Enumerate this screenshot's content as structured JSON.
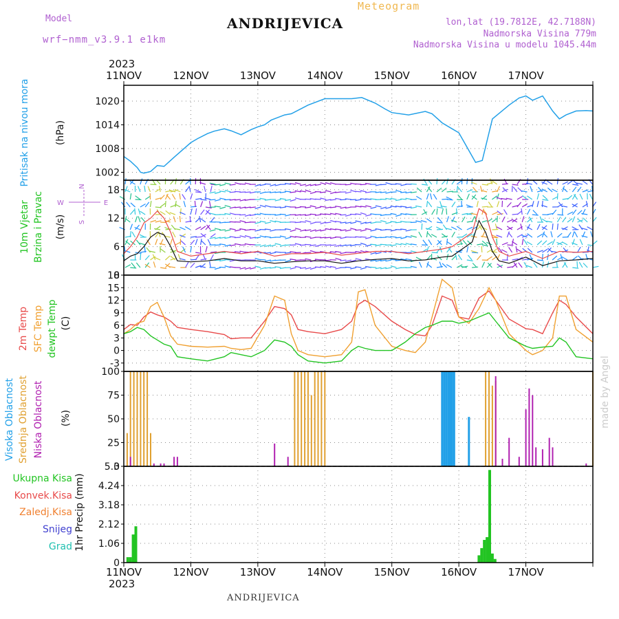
{
  "header": {
    "model_label": "Model",
    "model_name": "wrf−nmm_v3.9.1  e1km",
    "station": "ANDRIJEVICA",
    "meteogram_label": "Meteogram",
    "lonlat": "lon,lat (19.7812E, 42.7188N)",
    "altitude": "Nadmorska Visina 779m",
    "model_altitude": "Nadmorska Visina u modelu 1045.44m"
  },
  "footer": {
    "station": "ANDRIJEVICA",
    "credit": "made by Angel"
  },
  "colors": {
    "pressure": "#22a0e8",
    "temp2m": "#e84a4a",
    "sfc": "#f0a030",
    "dewpt": "#22c422",
    "high_cloud": "#22a0e8",
    "mid_cloud": "#e0a030",
    "low_cloud": "#b020b0",
    "precip_total": "#22c422",
    "convective": "#e84a4a",
    "freezing": "#f08030",
    "snow": "#4040d0",
    "hail": "#20c0b0",
    "wind_label": "#22c422",
    "gust": "#e84a4a"
  },
  "chart_data": [
    {
      "type": "line",
      "panel": "pressure",
      "ylabel": [
        "Pritisak na nivou mora",
        "(hPa)"
      ],
      "ylim": [
        1000,
        1024
      ],
      "yticks": [
        1002,
        1008,
        1014,
        1020
      ],
      "grid": true,
      "x_labels": [
        "11NOV",
        "12NOV",
        "13NOV",
        "14NOV",
        "15NOV",
        "16NOV",
        "17NOV"
      ],
      "x_year": "2023",
      "series": [
        {
          "x": [
            0,
            0.1,
            0.2,
            0.25,
            0.3,
            0.4,
            0.5,
            0.6,
            0.75,
            1.0,
            1.1,
            1.25,
            1.35,
            1.5,
            1.6,
            1.75,
            1.9,
            2.0,
            2.1,
            2.2,
            2.4,
            2.5,
            2.75,
            3.0,
            3.2,
            3.4,
            3.55,
            3.75,
            3.9,
            4.0,
            4.25,
            4.5,
            4.6,
            4.75,
            4.9,
            5.0,
            5.1,
            5.25,
            5.35,
            5.5,
            5.75,
            5.9,
            6.0,
            6.1,
            6.25,
            6.4,
            6.5,
            6.6,
            6.75,
            6.9,
            7.0
          ],
          "values": [
            1006,
            1004.8,
            1003.2,
            1002,
            1001.8,
            1002.2,
            1003.7,
            1003.5,
            1005.8,
            1009.5,
            1010.5,
            1011.8,
            1012.4,
            1013,
            1012.5,
            1011.5,
            1012.8,
            1013.5,
            1014,
            1015.2,
            1016.5,
            1016.8,
            1019,
            1020.6,
            1020.6,
            1020.6,
            1020.9,
            1019.5,
            1018,
            1017.1,
            1016.5,
            1017.4,
            1016.8,
            1014.5,
            1013,
            1012,
            1009,
            1004.5,
            1005,
            1015.5,
            1019,
            1020.8,
            1021.3,
            1020.2,
            1021.3,
            1017.5,
            1015.5,
            1016.5,
            1017.5,
            1017.6,
            1017.5
          ]
        }
      ]
    },
    {
      "type": "line",
      "panel": "wind",
      "ylabel": [
        "10m Vjetar",
        "Brzina i Pravac",
        "(m/s)"
      ],
      "compass": [
        "N",
        "E",
        "S",
        "W"
      ],
      "ylim": [
        0,
        20
      ],
      "yticks": [
        0,
        6,
        12,
        18
      ],
      "grid": true,
      "series": [
        {
          "name": "speed",
          "x": [
            0,
            0.1,
            0.2,
            0.3,
            0.4,
            0.5,
            0.6,
            0.7,
            0.8,
            1.0,
            1.25,
            1.5,
            1.75,
            2.0,
            2.25,
            2.5,
            2.75,
            3.0,
            3.25,
            3.5,
            3.75,
            4.0,
            4.25,
            4.5,
            4.75,
            4.9,
            5.0,
            5.1,
            5.2,
            5.3,
            5.4,
            5.5,
            5.6,
            5.75,
            6.0,
            6.25,
            6.5,
            6.75,
            7.0
          ],
          "values": [
            3,
            4,
            4.5,
            6,
            8,
            9,
            8.5,
            6,
            3,
            2.8,
            3,
            3.5,
            3,
            3,
            2.5,
            2.8,
            3,
            3,
            2.5,
            3,
            3.3,
            3.5,
            3,
            3.2,
            3.8,
            4,
            5,
            6,
            7,
            11.5,
            9,
            5,
            3,
            2.5,
            3.8,
            2,
            3,
            3.2,
            3.5
          ]
        },
        {
          "name": "gust",
          "x": [
            0,
            0.1,
            0.2,
            0.3,
            0.4,
            0.5,
            0.6,
            0.7,
            0.8,
            1.0,
            1.25,
            1.5,
            1.75,
            2.0,
            2.25,
            2.5,
            2.75,
            3.0,
            3.25,
            3.5,
            3.75,
            4.0,
            4.25,
            4.5,
            4.75,
            4.9,
            5.0,
            5.1,
            5.2,
            5.3,
            5.4,
            5.5,
            5.6,
            5.75,
            6.0,
            6.25,
            6.5,
            6.75,
            7.0
          ],
          "values": [
            4.5,
            6,
            8,
            11,
            12,
            13.5,
            12,
            9,
            5,
            4,
            4.5,
            5,
            4.5,
            5,
            4,
            4.5,
            4.5,
            4.8,
            4.2,
            4.6,
            5,
            5,
            4.5,
            5,
            5.5,
            6,
            7,
            8,
            9,
            14,
            13,
            8,
            5,
            4,
            5,
            3.5,
            5,
            4.8,
            5
          ]
        }
      ]
    },
    {
      "type": "line",
      "panel": "temperature",
      "ylabel": [
        "2m Temp",
        "SFC Temp",
        "dewpt Temp",
        "(C)"
      ],
      "ylim": [
        -5,
        18
      ],
      "yticks": [
        -3,
        0,
        3,
        6,
        9,
        12,
        15,
        18
      ],
      "grid": true,
      "series": [
        {
          "name": "2m Temp",
          "x": [
            0,
            0.1,
            0.2,
            0.3,
            0.4,
            0.5,
            0.6,
            0.7,
            0.8,
            1.0,
            1.25,
            1.5,
            1.6,
            1.75,
            1.9,
            2.1,
            2.25,
            2.4,
            2.5,
            2.6,
            2.75,
            3.0,
            3.25,
            3.4,
            3.5,
            3.6,
            3.75,
            4.0,
            4.2,
            4.35,
            4.5,
            4.6,
            4.75,
            4.9,
            5.0,
            5.15,
            5.3,
            5.45,
            5.55,
            5.75,
            6.0,
            6.1,
            6.25,
            6.4,
            6.5,
            6.6,
            6.75,
            7.0
          ],
          "values": [
            5,
            6.2,
            6,
            8,
            9.2,
            8.5,
            8,
            7,
            5.5,
            5,
            4.5,
            3.8,
            2.8,
            3,
            3,
            7,
            10.5,
            10,
            8.5,
            5,
            4.5,
            4,
            5,
            7,
            11,
            12,
            10.5,
            7,
            5,
            3.8,
            3.5,
            6,
            13,
            12,
            8,
            7.5,
            12.5,
            14.2,
            12,
            7.5,
            5.2,
            5,
            4,
            9,
            12,
            11,
            8,
            4
          ]
        },
        {
          "name": "SFC Temp",
          "x": [
            0,
            0.1,
            0.2,
            0.3,
            0.4,
            0.5,
            0.6,
            0.7,
            0.8,
            1.0,
            1.25,
            1.5,
            1.6,
            1.75,
            1.9,
            2.1,
            2.25,
            2.4,
            2.5,
            2.6,
            2.75,
            3.0,
            3.25,
            3.4,
            3.5,
            3.6,
            3.75,
            4.0,
            4.2,
            4.35,
            4.5,
            4.6,
            4.75,
            4.9,
            5.0,
            5.15,
            5.3,
            5.45,
            5.55,
            5.75,
            6.0,
            6.1,
            6.25,
            6.4,
            6.5,
            6.6,
            6.75,
            7.0
          ],
          "values": [
            4,
            5,
            6.5,
            7,
            10.5,
            11.5,
            8,
            3.5,
            1.5,
            1,
            0.8,
            1,
            0.5,
            0.2,
            0.5,
            6,
            13,
            12,
            4,
            0,
            -1,
            -1.5,
            -1,
            2,
            14,
            14.5,
            6,
            1,
            0,
            -0.5,
            2,
            8,
            17,
            15,
            8,
            6.5,
            10,
            15,
            12,
            4,
            0,
            -1,
            0,
            3,
            13,
            13,
            5,
            2
          ]
        },
        {
          "name": "dewpt Temp",
          "x": [
            0,
            0.1,
            0.2,
            0.3,
            0.4,
            0.5,
            0.6,
            0.7,
            0.8,
            1.0,
            1.25,
            1.5,
            1.6,
            1.75,
            1.9,
            2.1,
            2.25,
            2.4,
            2.5,
            2.6,
            2.75,
            3.0,
            3.25,
            3.4,
            3.5,
            3.6,
            3.75,
            4.0,
            4.2,
            4.35,
            4.5,
            4.6,
            4.75,
            4.9,
            5.0,
            5.15,
            5.3,
            5.45,
            5.55,
            5.75,
            6.0,
            6.1,
            6.25,
            6.4,
            6.5,
            6.6,
            6.75,
            7.0
          ],
          "values": [
            4,
            4.5,
            5.5,
            5,
            3.5,
            2.5,
            1.5,
            1,
            -1.5,
            -2,
            -2.5,
            -1.5,
            -0.5,
            -1,
            -1.5,
            0,
            2.5,
            2,
            1,
            -1,
            -2.5,
            -3,
            -2.5,
            0,
            1,
            0.5,
            0,
            0,
            2,
            4,
            5.5,
            6,
            7,
            7,
            6.5,
            7,
            8,
            9,
            7,
            3,
            1,
            0.5,
            0.8,
            1,
            3,
            2,
            -1.5,
            -2
          ]
        }
      ]
    },
    {
      "type": "bar",
      "panel": "cloud",
      "ylabel": [
        "Visoka Oblacnost",
        "Srednja Oblacnost",
        "Niska Oblacnost",
        "(%)"
      ],
      "ylim": [
        0,
        100
      ],
      "yticks": [
        0,
        25,
        50,
        75,
        100
      ],
      "grid": true,
      "series": [
        {
          "name": "Visoka Oblacnost",
          "x": [
            4.75,
            4.78,
            4.81,
            4.84,
            4.87,
            4.9,
            4.93,
            5.15
          ],
          "values": [
            100,
            100,
            100,
            100,
            100,
            100,
            100,
            52
          ]
        },
        {
          "name": "Srednja Oblacnost",
          "x": [
            0.05,
            0.1,
            0.15,
            0.2,
            0.25,
            0.3,
            0.35,
            0.4,
            2.55,
            2.6,
            2.65,
            2.7,
            2.75,
            2.8,
            2.85,
            2.9,
            2.95,
            3.0,
            5.4,
            5.45,
            5.5,
            5.55,
            7.0
          ],
          "values": [
            35,
            100,
            100,
            100,
            100,
            100,
            100,
            35,
            100,
            100,
            100,
            100,
            100,
            75,
            100,
            100,
            100,
            100,
            100,
            100,
            85,
            90,
            100
          ]
        },
        {
          "name": "Niska Oblacnost",
          "x": [
            0.1,
            0.45,
            0.55,
            0.6,
            0.75,
            0.8,
            2.25,
            2.45,
            5.55,
            5.65,
            5.75,
            5.9,
            6.0,
            6.05,
            6.1,
            6.15,
            6.25,
            6.35,
            6.4,
            6.9
          ],
          "values": [
            10,
            3,
            3,
            3,
            10,
            10,
            24,
            10,
            95,
            8,
            30,
            10,
            60,
            82,
            75,
            20,
            18,
            30,
            20,
            3
          ]
        }
      ]
    },
    {
      "type": "bar",
      "panel": "precip",
      "ylabel": [
        "1hr Precip (mm)"
      ],
      "legend": [
        "Ukupna Kisa",
        "Konvek.Kisa",
        "Zaledj.Kisa",
        "Snijeg",
        "Grad"
      ],
      "ylim": [
        0,
        5.3
      ],
      "yticks": [
        0,
        1.06,
        2.12,
        3.18,
        4.24,
        5.3
      ],
      "ytick_labels": [
        "0",
        "1.06",
        "2.12",
        "3.18",
        "4.24",
        "5.3"
      ],
      "grid": true,
      "series": [
        {
          "name": "Ukupna Kisa",
          "x": [
            0.06,
            0.1,
            0.14,
            0.18,
            5.3,
            5.34,
            5.38,
            5.42,
            5.46,
            5.5,
            5.54
          ],
          "values": [
            0.3,
            0.3,
            1.55,
            2.0,
            0.4,
            0.8,
            1.25,
            1.4,
            5.1,
            0.5,
            0.2
          ]
        }
      ]
    }
  ]
}
